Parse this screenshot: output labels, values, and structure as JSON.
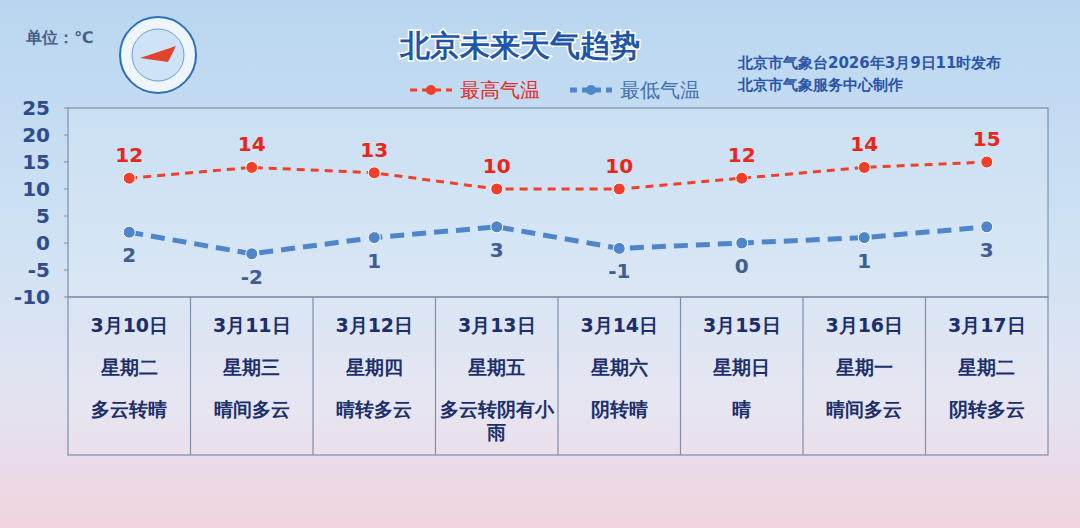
{
  "chart_data": {
    "type": "line",
    "title": "北京未来天气趋势",
    "categories": [
      "3月10日",
      "3月11日",
      "3月12日",
      "3月13日",
      "3月14日",
      "3月15日",
      "3月16日",
      "3月17日"
    ],
    "series": [
      {
        "name": "最高气温",
        "color": "#f0402a",
        "marker": "circle",
        "line_style": "dashed",
        "values": [
          12,
          14,
          13,
          10,
          10,
          12,
          14,
          15
        ]
      },
      {
        "name": "最低气温",
        "color": "#4f86c9",
        "marker": "circle",
        "line_style": "dashed",
        "values": [
          2,
          -2,
          1,
          3,
          -1,
          0,
          1,
          3
        ]
      }
    ],
    "ylim": [
      -10,
      25
    ],
    "yticks": [
      -10,
      -5,
      0,
      5,
      10,
      15,
      20,
      25
    ],
    "grid": false,
    "legend": "top",
    "data_labels": true
  },
  "header": {
    "unit": "单位：℃",
    "publisher": "北京市气象台2026年3月9日11时发布",
    "producer": "北京市气象服务中心制作"
  },
  "forecast_table": {
    "weekdays": [
      "星期二",
      "星期三",
      "星期四",
      "星期五",
      "星期六",
      "星期日",
      "星期一",
      "星期二"
    ],
    "weather": [
      "多云转晴",
      "晴间多云",
      "晴转多云",
      "多云转阴有小雨",
      "阴转晴",
      "晴",
      "晴间多云",
      "阴转多云"
    ]
  }
}
